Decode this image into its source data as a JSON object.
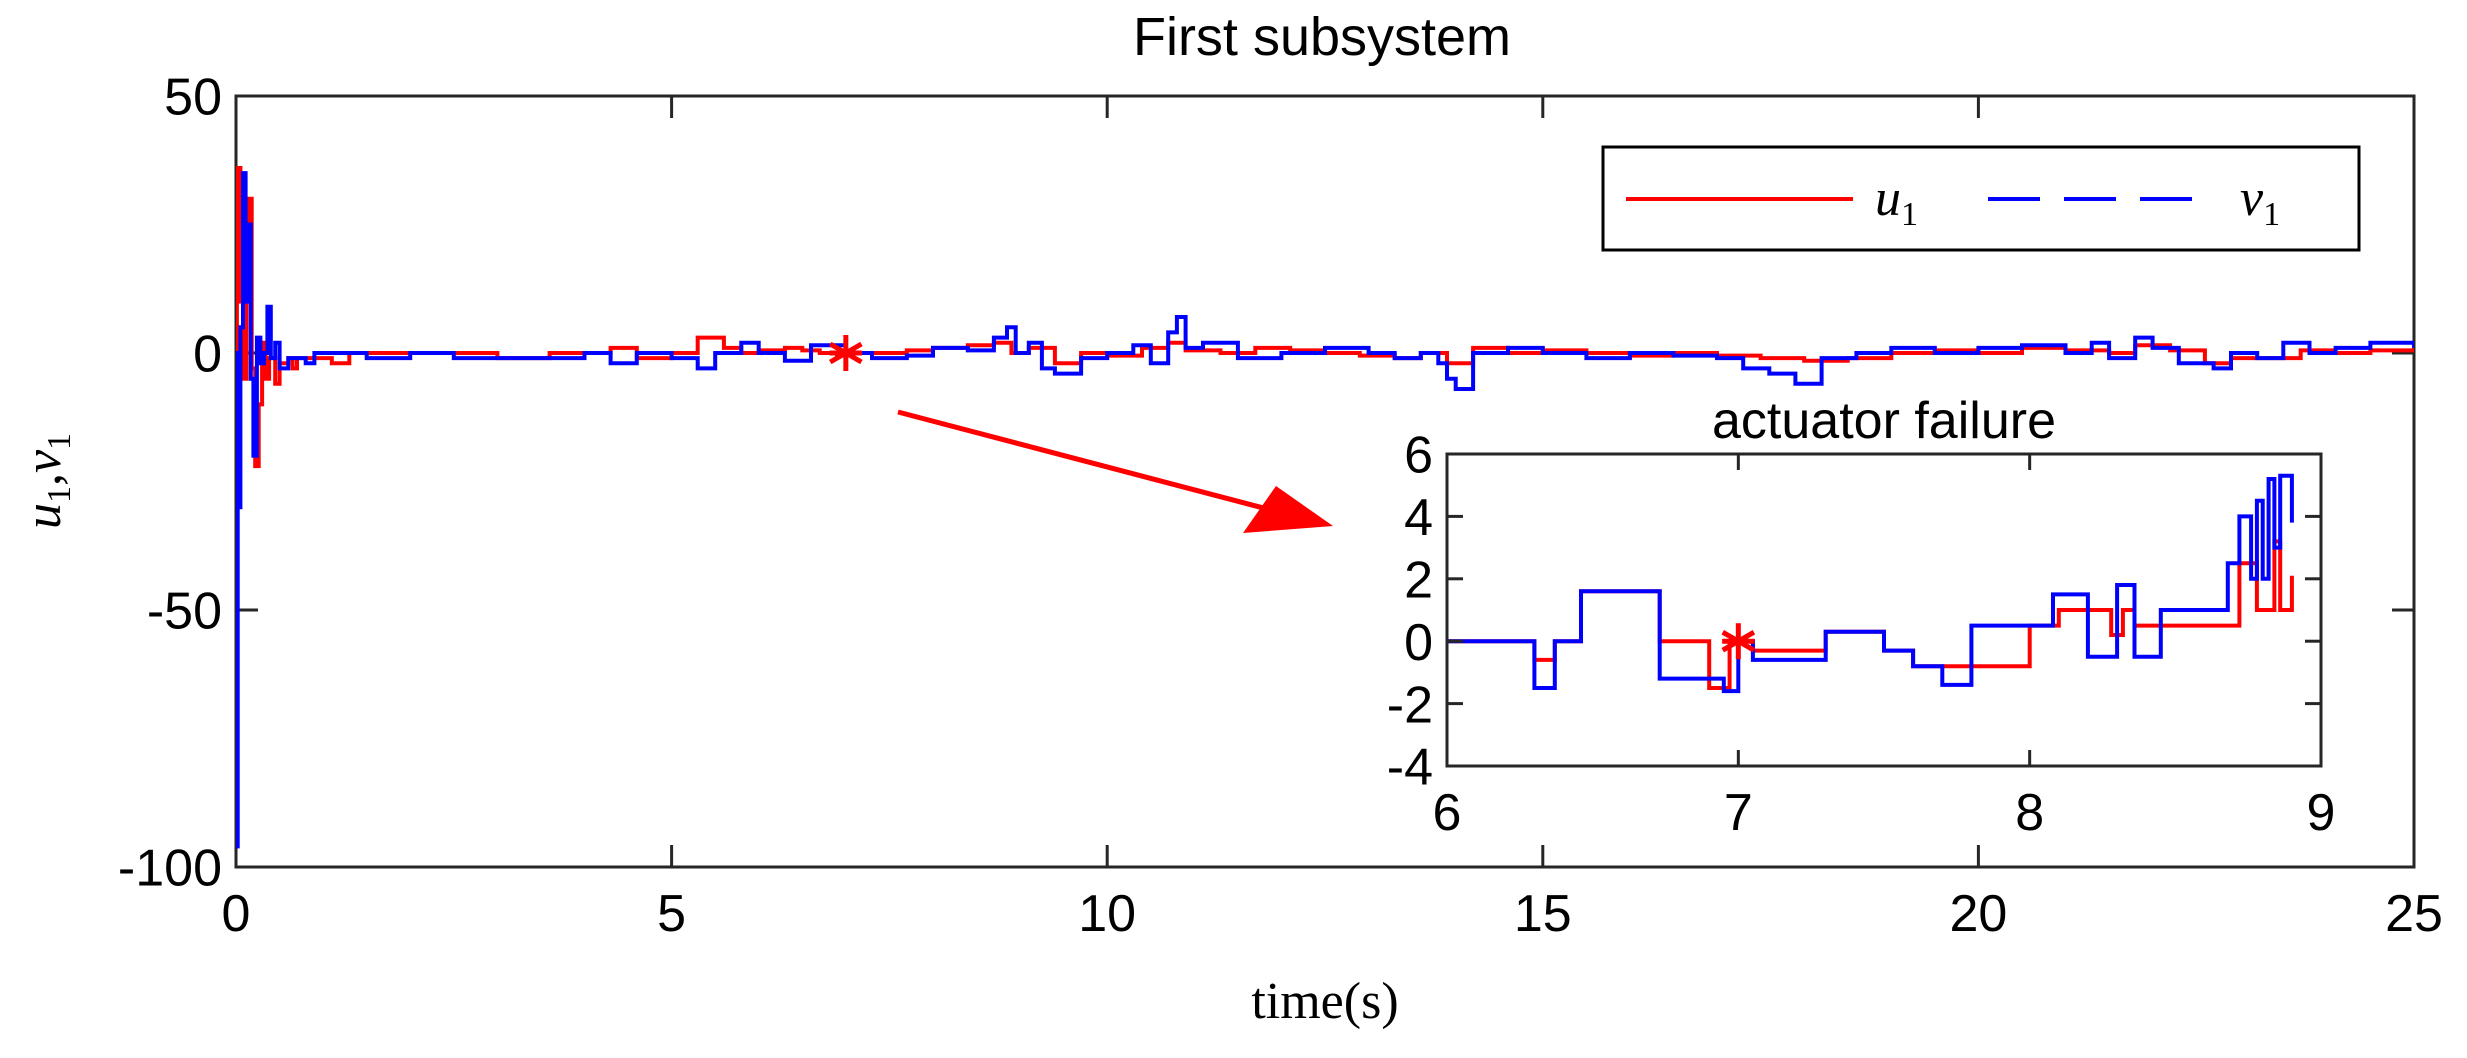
{
  "chart_data": {
    "type": "line",
    "title": "First subsystem",
    "xlabel": "time(s)",
    "ylabel": "u_1,v_1",
    "ylabel_parts": {
      "a": "u",
      "a_sub": "1",
      "sep": ",",
      "b": "v",
      "b_sub": "1"
    },
    "xlim": [
      0,
      25
    ],
    "ylim": [
      -100,
      50
    ],
    "xticks": [
      0,
      5,
      10,
      15,
      20,
      25
    ],
    "xtick_labels": [
      "0",
      "5",
      "10",
      "15",
      "20",
      "25"
    ],
    "yticks": [
      -100,
      -50,
      0,
      50
    ],
    "ytick_labels": [
      "-100",
      "-50",
      "0",
      "50"
    ],
    "grid": false,
    "legend_location": "top-right",
    "legend": [
      {
        "name": "u",
        "sub": "1",
        "color": "#ff0000",
        "style": "solid"
      },
      {
        "name": "v",
        "sub": "1",
        "color": "#0000ff",
        "style": "dashed"
      }
    ],
    "marker": {
      "x": 7,
      "y": 0,
      "symbol": "*",
      "color": "#ff0000"
    },
    "series": [
      {
        "name": "u1",
        "color": "#ff0000",
        "x": [
          0,
          0.01,
          0.05,
          0.08,
          0.12,
          0.15,
          0.18,
          0.22,
          0.26,
          0.3,
          0.34,
          0.38,
          0.45,
          0.5,
          0.6,
          0.65,
          0.7,
          0.9,
          1.1,
          1.3,
          1.5,
          2.0,
          3.0,
          3.6,
          4.0,
          4.3,
          4.6,
          5.0,
          5.3,
          5.6,
          5.8,
          6.0,
          6.3,
          6.5,
          6.7,
          6.9,
          7.0,
          7.3,
          7.7,
          8.0,
          8.4,
          8.7,
          8.9,
          9.1,
          9.4,
          9.7,
          10.0,
          10.4,
          10.7,
          10.9,
          11.3,
          11.7,
          12.1,
          12.5,
          12.9,
          13.3,
          13.6,
          13.9,
          14.2,
          14.6,
          15.0,
          15.5,
          16.0,
          16.5,
          17.0,
          17.5,
          18.0,
          18.5,
          19.0,
          19.5,
          20.0,
          20.5,
          21.0,
          21.5,
          21.8,
          22.2,
          22.6,
          22.9,
          23.3,
          23.7,
          24.1,
          24.5,
          25.0
        ],
        "values": [
          0,
          36,
          10,
          -5,
          20,
          30,
          -3,
          -22,
          -10,
          2,
          -5,
          -1,
          -6,
          -2,
          -1,
          -3,
          -1,
          -1,
          -2,
          0,
          0,
          0,
          -1,
          0,
          0,
          1,
          -1,
          0,
          3,
          1,
          0,
          0.5,
          1,
          0.5,
          0,
          -0.5,
          0,
          0,
          0.5,
          1,
          1.5,
          2,
          0,
          1,
          -2,
          0,
          -0.5,
          1,
          2,
          0.5,
          0,
          1,
          0.5,
          0,
          -0.5,
          -1,
          0,
          -2,
          1,
          0,
          0.5,
          0,
          -0.5,
          0,
          -0.5,
          -1,
          -1.5,
          -1,
          0,
          0.5,
          0,
          1,
          0.5,
          0,
          1.5,
          0.5,
          -2,
          -1,
          -1,
          0.5,
          0,
          0.5,
          1
        ]
      },
      {
        "name": "v1",
        "color": "#0000ff",
        "x": [
          0,
          0.005,
          0.02,
          0.05,
          0.08,
          0.11,
          0.14,
          0.17,
          0.2,
          0.24,
          0.28,
          0.32,
          0.36,
          0.4,
          0.45,
          0.5,
          0.6,
          0.7,
          0.8,
          0.9,
          1.1,
          1.3,
          1.5,
          2.0,
          2.5,
          3.0,
          3.5,
          4.0,
          4.3,
          4.6,
          5.0,
          5.3,
          5.5,
          5.8,
          6.0,
          6.3,
          6.6,
          7.0,
          7.3,
          7.7,
          8.0,
          8.4,
          8.7,
          8.85,
          8.95,
          9.1,
          9.25,
          9.4,
          9.7,
          10.0,
          10.3,
          10.5,
          10.7,
          10.8,
          10.9,
          11.1,
          11.5,
          12.0,
          12.5,
          13.0,
          13.3,
          13.6,
          13.8,
          13.9,
          14.0,
          14.2,
          14.6,
          15.0,
          15.5,
          16.0,
          16.5,
          17.0,
          17.3,
          17.6,
          17.9,
          18.2,
          18.6,
          19.0,
          19.5,
          20.0,
          20.5,
          21.0,
          21.3,
          21.5,
          21.8,
          22.0,
          22.3,
          22.7,
          22.9,
          23.2,
          23.5,
          23.8,
          24.1,
          24.5,
          25.0
        ],
        "values": [
          0,
          -96,
          -30,
          5,
          35,
          10,
          25,
          -5,
          -20,
          3,
          -2,
          0,
          9,
          -1,
          2,
          -3,
          -1,
          -1,
          -2,
          0,
          0,
          0,
          -1,
          0,
          -1,
          -1,
          -1,
          0,
          -2,
          0,
          -1,
          -3,
          0,
          2,
          0,
          -1.5,
          1.5,
          0,
          -1,
          -0.5,
          1,
          0.5,
          3,
          5,
          0,
          2,
          -3,
          -4,
          -1,
          0,
          1.5,
          -2,
          4,
          7,
          1,
          2,
          -1,
          0,
          1,
          0,
          -1,
          0,
          -2,
          -5,
          -7,
          0,
          1,
          0,
          -1,
          0,
          -0.5,
          -1,
          -3,
          -4,
          -6,
          -1,
          0,
          1,
          0,
          1,
          1.5,
          0,
          2,
          -1,
          3,
          1,
          -2,
          -3,
          0,
          -1,
          2,
          0,
          1,
          2,
          1
        ]
      }
    ],
    "inset": {
      "title": "actuator failure",
      "xlim": [
        6,
        9
      ],
      "ylim": [
        -4,
        6
      ],
      "xticks": [
        6,
        7,
        8,
        9
      ],
      "xtick_labels": [
        "6",
        "7",
        "8",
        "9"
      ],
      "yticks": [
        -4,
        -2,
        0,
        2,
        4,
        6
      ],
      "ytick_labels": [
        "-4",
        "-2",
        "0",
        "2",
        "4",
        "6"
      ],
      "marker": {
        "x": 7,
        "y": 0,
        "symbol": "*",
        "color": "#ff0000"
      },
      "series": [
        {
          "name": "u1",
          "color": "#ff0000",
          "x": [
            6.0,
            6.3,
            6.37,
            6.46,
            6.53,
            6.73,
            6.9,
            6.97,
            7.0,
            7.05,
            7.1,
            7.2,
            7.3,
            7.4,
            7.5,
            7.6,
            7.7,
            8.0,
            8.1,
            8.2,
            8.28,
            8.32,
            8.36,
            8.45,
            8.65,
            8.72,
            8.78,
            8.84,
            8.86,
            8.9
          ],
          "values": [
            0,
            -0.6,
            0,
            1.6,
            1.6,
            0,
            -1.5,
            0,
            0,
            -0.3,
            -0.3,
            -0.3,
            0.3,
            0.3,
            -0.3,
            -0.8,
            -0.8,
            0.5,
            1.0,
            1.0,
            0.2,
            1.0,
            0.5,
            0.5,
            0.5,
            2.5,
            1.0,
            3.2,
            1.0,
            2.1
          ]
        },
        {
          "name": "v1",
          "color": "#0000ff",
          "x": [
            6.0,
            6.3,
            6.37,
            6.46,
            6.53,
            6.73,
            6.95,
            7.0,
            7.05,
            7.1,
            7.2,
            7.3,
            7.4,
            7.5,
            7.6,
            7.7,
            7.8,
            8.0,
            8.08,
            8.15,
            8.2,
            8.3,
            8.36,
            8.45,
            8.52,
            8.6,
            8.68,
            8.72,
            8.76,
            8.78,
            8.8,
            8.82,
            8.84,
            8.86,
            8.9
          ],
          "values": [
            0,
            -1.5,
            0,
            1.6,
            1.6,
            -1.2,
            -1.6,
            0,
            -0.6,
            -0.6,
            -0.6,
            0.3,
            0.3,
            -0.3,
            -0.8,
            -1.4,
            0.5,
            0.5,
            1.5,
            1.5,
            -0.5,
            1.8,
            -0.5,
            1.0,
            1.0,
            1.0,
            2.5,
            4.0,
            2.0,
            4.5,
            2.0,
            5.2,
            3.0,
            5.3,
            3.8
          ]
        }
      ]
    }
  }
}
